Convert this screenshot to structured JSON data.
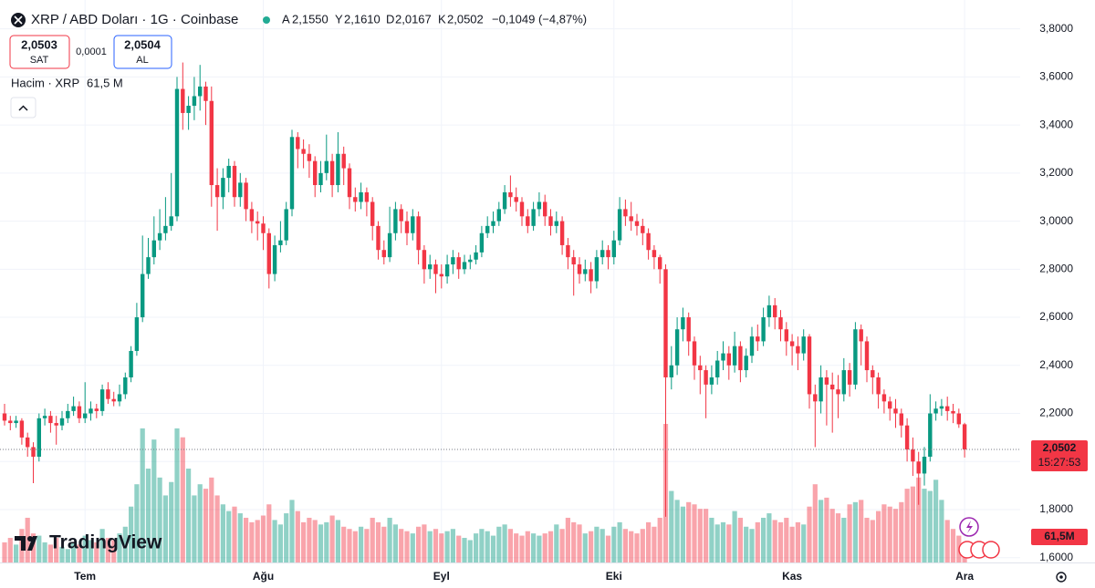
{
  "chart_data": {
    "type": "candlestick",
    "title": "XRP / ABD Doları · 1G · Coinbase",
    "ohlc_legend": {
      "open_key": "A",
      "open": "2,1550",
      "high_key": "Y",
      "high": "2,1610",
      "low_key": "D",
      "low": "2,0167",
      "close_key": "K",
      "close": "2,0502",
      "change": "−0,1049 (−4,87%)"
    },
    "quote": {
      "sell_price": "2,0503",
      "sell_label": "SAT",
      "spread": "0,0001",
      "buy_price": "2,0504",
      "buy_label": "AL"
    },
    "volume_legend": {
      "label": "Hacim · XRP",
      "value": "61,5 M"
    },
    "last_price_label": "2,0502",
    "countdown": "15:27:53",
    "volume_tag": "61,5M",
    "brand": "TradingView",
    "up_color": "#089981",
    "down_color": "#f23645",
    "grid": true,
    "ylim": [
      1.58,
      3.92
    ],
    "yticks": [
      {
        "value": 1.6,
        "label": "1,6000"
      },
      {
        "value": 1.8,
        "label": "1,8000"
      },
      {
        "value": 2.0,
        "label": "2,0000"
      },
      {
        "value": 2.2,
        "label": "2,2000"
      },
      {
        "value": 2.4,
        "label": "2,4000"
      },
      {
        "value": 2.6,
        "label": "2,6000"
      },
      {
        "value": 2.8,
        "label": "2,8000"
      },
      {
        "value": 3.0,
        "label": "3,0000"
      },
      {
        "value": 3.2,
        "label": "3,2000"
      },
      {
        "value": 3.4,
        "label": "3,4000"
      },
      {
        "value": 3.6,
        "label": "3,6000"
      },
      {
        "value": 3.8,
        "label": "3,8000"
      }
    ],
    "categories": [
      null,
      null,
      null,
      null,
      null,
      null,
      null,
      null,
      null,
      null,
      null,
      null,
      null,
      null,
      "Tem",
      null,
      null,
      null,
      null,
      null,
      null,
      null,
      null,
      null,
      null,
      null,
      null,
      null,
      null,
      null,
      null,
      null,
      null,
      null,
      null,
      null,
      null,
      null,
      null,
      null,
      null,
      null,
      null,
      null,
      null,
      "Ağu",
      null,
      null,
      null,
      null,
      null,
      null,
      null,
      null,
      null,
      null,
      null,
      null,
      null,
      null,
      null,
      null,
      null,
      null,
      null,
      null,
      null,
      null,
      null,
      null,
      null,
      null,
      null,
      null,
      null,
      null,
      "Eyl",
      null,
      null,
      null,
      null,
      null,
      null,
      null,
      null,
      null,
      null,
      null,
      null,
      null,
      null,
      null,
      null,
      null,
      null,
      null,
      null,
      null,
      null,
      null,
      null,
      null,
      null,
      null,
      null,
      null,
      "Eki",
      null,
      null,
      null,
      null,
      null,
      null,
      null,
      null,
      null,
      null,
      null,
      null,
      null,
      null,
      null,
      null,
      null,
      null,
      null,
      null,
      null,
      null,
      null,
      null,
      null,
      null,
      null,
      null,
      null,
      null,
      "Kas",
      null,
      null,
      null,
      null,
      null,
      null,
      null,
      null,
      null,
      null,
      null,
      null,
      null,
      null,
      null,
      null,
      null,
      null,
      null,
      null,
      null,
      null,
      null,
      null,
      null,
      null,
      null,
      null,
      null,
      "Ara"
    ],
    "open": [
      2.2,
      2.17,
      2.16,
      2.17,
      2.1,
      2.06,
      2.02,
      2.18,
      2.19,
      2.16,
      2.15,
      2.18,
      2.21,
      2.23,
      2.18,
      2.2,
      2.22,
      2.21,
      2.3,
      2.26,
      2.25,
      2.28,
      2.35,
      2.46,
      2.6,
      2.78,
      2.85,
      2.92,
      2.95,
      2.98,
      3.02,
      3.55,
      3.45,
      3.48,
      3.52,
      3.56,
      3.5,
      3.15,
      3.1,
      3.18,
      3.23,
      3.1,
      3.16,
      3.05,
      3.0,
      2.99,
      2.95,
      2.78,
      2.9,
      2.92,
      3.05,
      3.35,
      3.3,
      3.28,
      3.25,
      3.15,
      3.2,
      3.25,
      3.15,
      3.28,
      3.22,
      3.1,
      3.08,
      3.12,
      3.08,
      2.98,
      2.88,
      2.85,
      2.95,
      3.05,
      3.0,
      2.95,
      3.02,
      2.88,
      2.8,
      2.82,
      2.78,
      2.77,
      2.82,
      2.85,
      2.8,
      2.83,
      2.84,
      2.87,
      2.95,
      2.98,
      3.0,
      3.05,
      3.12,
      3.1,
      3.08,
      3.02,
      2.98,
      3.05,
      3.08,
      3.02,
      2.98,
      3.0,
      2.9,
      2.85,
      2.82,
      2.78,
      2.8,
      2.75,
      2.85,
      2.88,
      2.85,
      2.92,
      3.05,
      3.02,
      3.0,
      2.98,
      2.95,
      2.88,
      2.85,
      2.8,
      2.35,
      2.4,
      2.55,
      2.6,
      2.5,
      2.4,
      2.38,
      2.32,
      2.35,
      2.42,
      2.45,
      2.4,
      2.48,
      2.38,
      2.44,
      2.52,
      2.5,
      2.6,
      2.65,
      2.6,
      2.55,
      2.5,
      2.48,
      2.45,
      2.52,
      2.28,
      2.25,
      2.35,
      2.32,
      2.3,
      2.28,
      2.38,
      2.32,
      2.55,
      2.5,
      2.38,
      2.35,
      2.28,
      2.25,
      2.22,
      2.2,
      2.15,
      2.05,
      2.0,
      1.95,
      2.02,
      2.2,
      2.22,
      2.23,
      2.21,
      2.2,
      2.155
    ],
    "high": [
      2.24,
      2.19,
      2.19,
      2.18,
      2.12,
      2.08,
      2.2,
      2.22,
      2.21,
      2.19,
      2.21,
      2.24,
      2.27,
      2.25,
      2.33,
      2.25,
      2.24,
      2.32,
      2.33,
      2.29,
      2.32,
      2.37,
      2.48,
      2.66,
      2.94,
      2.93,
      3.02,
      3.05,
      3.1,
      3.2,
      3.6,
      3.66,
      3.52,
      3.6,
      3.65,
      3.58,
      3.56,
      3.22,
      3.22,
      3.26,
      3.25,
      3.2,
      3.18,
      3.08,
      3.04,
      3.02,
      2.97,
      2.94,
      3.0,
      3.08,
      3.38,
      3.37,
      3.34,
      3.32,
      3.27,
      3.25,
      3.36,
      3.28,
      3.37,
      3.31,
      3.24,
      3.14,
      3.16,
      3.14,
      3.1,
      3.0,
      2.92,
      3.06,
      3.08,
      3.07,
      3.04,
      3.05,
      3.04,
      2.9,
      2.86,
      2.84,
      2.82,
      2.86,
      2.88,
      2.87,
      2.86,
      2.86,
      2.9,
      2.98,
      3.02,
      3.04,
      3.08,
      3.15,
      3.19,
      3.14,
      3.1,
      3.05,
      3.08,
      3.12,
      3.11,
      3.05,
      3.04,
      3.02,
      2.93,
      2.88,
      2.85,
      2.84,
      2.83,
      2.88,
      2.92,
      2.9,
      2.96,
      3.1,
      3.09,
      3.08,
      3.03,
      3.01,
      2.97,
      2.9,
      2.86,
      2.82,
      2.48,
      2.6,
      2.64,
      2.62,
      2.52,
      2.44,
      2.4,
      2.4,
      2.46,
      2.5,
      2.48,
      2.54,
      2.5,
      2.47,
      2.56,
      2.57,
      2.64,
      2.69,
      2.68,
      2.63,
      2.58,
      2.53,
      2.52,
      2.55,
      2.53,
      2.32,
      2.4,
      2.38,
      2.37,
      2.36,
      2.43,
      2.41,
      2.58,
      2.57,
      2.52,
      2.4,
      2.37,
      2.3,
      2.27,
      2.26,
      2.22,
      2.18,
      2.1,
      2.04,
      2.06,
      2.28,
      2.25,
      2.26,
      2.27,
      2.24,
      2.22,
      2.161
    ],
    "low": [
      2.15,
      2.13,
      2.14,
      2.07,
      2.02,
      1.91,
      2.0,
      2.15,
      2.12,
      2.07,
      2.13,
      2.16,
      2.19,
      2.16,
      2.16,
      2.17,
      2.18,
      2.19,
      2.24,
      2.23,
      2.23,
      2.26,
      2.33,
      2.44,
      2.58,
      2.76,
      2.82,
      2.88,
      2.92,
      2.96,
      3.0,
      3.38,
      3.38,
      3.42,
      3.46,
      3.4,
      3.06,
      2.96,
      3.05,
      3.12,
      3.06,
      3.06,
      3.0,
      2.95,
      2.92,
      2.88,
      2.72,
      2.75,
      2.87,
      2.9,
      3.02,
      3.22,
      3.22,
      3.18,
      3.1,
      3.12,
      3.17,
      3.1,
      3.12,
      3.15,
      3.05,
      3.04,
      3.05,
      3.02,
      2.92,
      2.84,
      2.82,
      2.83,
      2.92,
      2.95,
      2.9,
      2.92,
      2.82,
      2.74,
      2.76,
      2.7,
      2.72,
      2.74,
      2.78,
      2.76,
      2.78,
      2.8,
      2.82,
      2.85,
      2.93,
      2.95,
      2.98,
      3.03,
      3.06,
      3.04,
      2.98,
      2.95,
      2.96,
      3.02,
      2.98,
      2.94,
      2.95,
      2.86,
      2.8,
      2.69,
      2.74,
      2.75,
      2.7,
      2.72,
      2.82,
      2.8,
      2.82,
      2.9,
      2.98,
      2.96,
      2.94,
      2.9,
      2.84,
      2.8,
      2.74,
      1.77,
      2.3,
      2.36,
      2.5,
      2.44,
      2.34,
      2.28,
      2.18,
      2.28,
      2.32,
      2.38,
      2.34,
      2.37,
      2.33,
      2.35,
      2.41,
      2.46,
      2.48,
      2.56,
      2.55,
      2.5,
      2.44,
      2.4,
      2.38,
      2.42,
      2.22,
      2.06,
      2.2,
      2.15,
      2.12,
      2.18,
      2.25,
      2.27,
      2.3,
      2.4,
      2.33,
      2.28,
      2.22,
      2.2,
      2.17,
      2.14,
      2.1,
      2.0,
      1.94,
      1.82,
      1.9,
      2.0,
      2.17,
      2.19,
      2.17,
      2.16,
      2.14,
      2.0167
    ],
    "close": [
      2.17,
      2.16,
      2.17,
      2.1,
      2.06,
      2.02,
      2.18,
      2.19,
      2.16,
      2.15,
      2.18,
      2.21,
      2.23,
      2.18,
      2.2,
      2.22,
      2.21,
      2.3,
      2.26,
      2.25,
      2.28,
      2.35,
      2.46,
      2.6,
      2.78,
      2.85,
      2.92,
      2.95,
      2.98,
      3.02,
      3.55,
      3.45,
      3.48,
      3.52,
      3.56,
      3.5,
      3.15,
      3.1,
      3.18,
      3.23,
      3.1,
      3.16,
      3.05,
      3.0,
      2.99,
      2.95,
      2.78,
      2.9,
      2.92,
      3.05,
      3.35,
      3.3,
      3.28,
      3.25,
      3.15,
      3.2,
      3.25,
      3.15,
      3.28,
      3.22,
      3.1,
      3.08,
      3.12,
      3.08,
      2.98,
      2.88,
      2.85,
      2.95,
      3.05,
      3.0,
      2.95,
      3.02,
      2.88,
      2.8,
      2.82,
      2.78,
      2.77,
      2.82,
      2.85,
      2.8,
      2.83,
      2.84,
      2.87,
      2.95,
      2.98,
      3.0,
      3.05,
      3.12,
      3.1,
      3.08,
      3.02,
      2.98,
      3.05,
      3.08,
      3.02,
      2.98,
      3.0,
      2.9,
      2.85,
      2.82,
      2.78,
      2.8,
      2.75,
      2.85,
      2.88,
      2.85,
      2.92,
      3.05,
      3.02,
      3.0,
      2.98,
      2.95,
      2.88,
      2.85,
      2.8,
      2.35,
      2.4,
      2.55,
      2.6,
      2.5,
      2.4,
      2.38,
      2.32,
      2.35,
      2.42,
      2.45,
      2.4,
      2.48,
      2.38,
      2.44,
      2.52,
      2.5,
      2.6,
      2.65,
      2.6,
      2.55,
      2.5,
      2.48,
      2.45,
      2.52,
      2.28,
      2.25,
      2.35,
      2.32,
      2.3,
      2.28,
      2.38,
      2.32,
      2.55,
      2.5,
      2.38,
      2.35,
      2.28,
      2.25,
      2.22,
      2.2,
      2.15,
      2.05,
      2.0,
      1.95,
      2.02,
      2.2,
      2.22,
      2.23,
      2.21,
      2.2,
      2.155,
      2.0502
    ],
    "volume": [
      90,
      110,
      80,
      150,
      200,
      130,
      120,
      90,
      80,
      110,
      70,
      60,
      90,
      80,
      120,
      100,
      90,
      150,
      110,
      100,
      130,
      160,
      250,
      350,
      600,
      420,
      550,
      380,
      300,
      360,
      600,
      560,
      420,
      300,
      350,
      330,
      380,
      300,
      260,
      230,
      250,
      220,
      200,
      180,
      190,
      210,
      260,
      190,
      170,
      220,
      280,
      230,
      180,
      200,
      190,
      170,
      180,
      210,
      190,
      160,
      150,
      140,
      160,
      150,
      200,
      180,
      160,
      200,
      170,
      150,
      140,
      130,
      160,
      170,
      140,
      150,
      130,
      140,
      150,
      120,
      110,
      100,
      130,
      150,
      140,
      120,
      160,
      170,
      150,
      130,
      120,
      140,
      130,
      120,
      130,
      140,
      170,
      150,
      200,
      180,
      170,
      130,
      140,
      160,
      150,
      120,
      160,
      180,
      150,
      140,
      130,
      150,
      180,
      160,
      200,
      620,
      320,
      280,
      250,
      270,
      260,
      240,
      240,
      200,
      170,
      180,
      170,
      230,
      200,
      160,
      150,
      180,
      200,
      220,
      190,
      180,
      200,
      160,
      180,
      170,
      250,
      350,
      280,
      290,
      240,
      220,
      200,
      260,
      270,
      280,
      200,
      190,
      230,
      260,
      250,
      240,
      270,
      330,
      340,
      380,
      330,
      320,
      370,
      280,
      190,
      150,
      120,
      61.5
    ]
  }
}
